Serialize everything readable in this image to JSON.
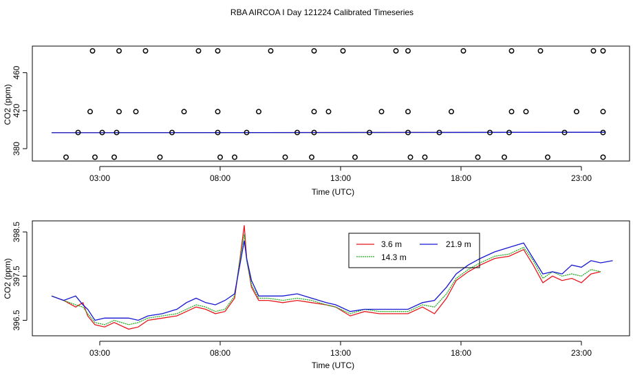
{
  "title": "RBA AIRCOA I  Day 121224  Calibrated Timeseries",
  "colors": {
    "red": "#e8141b",
    "green": "#1faa1f",
    "blue": "#1414d2"
  },
  "chart_data": [
    {
      "type": "line+scatter",
      "xlabel": "Time (UTC)",
      "ylabel": "CO2 (ppm)",
      "xlim": [
        0.2,
        25.0
      ],
      "ylim": [
        367,
        488
      ],
      "xticks": [
        3,
        8,
        13,
        18,
        23
      ],
      "xtick_labels": [
        "03:00",
        "08:00",
        "13:00",
        "18:00",
        "23:00"
      ],
      "yticks": [
        380,
        420,
        460
      ],
      "ytick_labels": [
        "380",
        "420",
        "460"
      ],
      "points": [
        [
          1.6,
          371
        ],
        [
          2.8,
          371
        ],
        [
          3.6,
          371
        ],
        [
          5.5,
          371
        ],
        [
          8.0,
          371
        ],
        [
          8.6,
          371
        ],
        [
          10.7,
          371
        ],
        [
          11.8,
          371
        ],
        [
          13.6,
          371
        ],
        [
          15.9,
          371
        ],
        [
          16.5,
          371
        ],
        [
          18.7,
          371
        ],
        [
          19.8,
          371
        ],
        [
          21.6,
          371
        ],
        [
          23.9,
          371
        ],
        [
          2.1,
          397
        ],
        [
          3.1,
          397
        ],
        [
          3.7,
          397
        ],
        [
          6.0,
          397
        ],
        [
          7.9,
          397
        ],
        [
          9.1,
          397
        ],
        [
          11.2,
          397
        ],
        [
          11.9,
          397
        ],
        [
          14.2,
          397
        ],
        [
          15.8,
          397
        ],
        [
          17.1,
          397
        ],
        [
          19.2,
          397
        ],
        [
          20.0,
          397
        ],
        [
          22.3,
          397
        ],
        [
          23.9,
          397
        ],
        [
          2.6,
          419
        ],
        [
          3.8,
          419
        ],
        [
          4.5,
          419
        ],
        [
          6.5,
          419
        ],
        [
          7.9,
          419
        ],
        [
          9.6,
          419
        ],
        [
          11.9,
          419
        ],
        [
          12.5,
          419
        ],
        [
          14.7,
          419
        ],
        [
          15.8,
          419
        ],
        [
          17.6,
          419
        ],
        [
          20.1,
          419
        ],
        [
          20.7,
          419
        ],
        [
          22.8,
          419
        ],
        [
          23.9,
          419
        ],
        [
          2.7,
          483
        ],
        [
          3.8,
          483
        ],
        [
          4.9,
          483
        ],
        [
          7.1,
          483
        ],
        [
          7.9,
          483
        ],
        [
          10.1,
          483
        ],
        [
          11.9,
          483
        ],
        [
          13.1,
          483
        ],
        [
          15.3,
          483
        ],
        [
          15.8,
          483
        ],
        [
          18.1,
          483
        ],
        [
          20.1,
          483
        ],
        [
          21.3,
          483
        ],
        [
          23.5,
          483
        ],
        [
          23.9,
          483
        ]
      ],
      "series": [
        {
          "name": "3.6 m",
          "color": "#e8141b",
          "x": [
            1.0,
            24.0
          ],
          "y": [
            396.8,
            397.2
          ]
        },
        {
          "name": "14.3 m",
          "color": "#1faa1f",
          "x": [
            1.0,
            24.0
          ],
          "y": [
            396.8,
            397.2
          ]
        },
        {
          "name": "21.9 m",
          "color": "#1414d2",
          "x": [
            1.0,
            24.0
          ],
          "y": [
            396.8,
            397.3
          ]
        }
      ]
    },
    {
      "type": "line",
      "xlabel": "Time (UTC)",
      "ylabel": "CO2 (ppm)",
      "xlim": [
        0.2,
        25.0
      ],
      "ylim": [
        396.15,
        398.75
      ],
      "xticks": [
        3,
        8,
        13,
        18,
        23
      ],
      "xtick_labels": [
        "03:00",
        "08:00",
        "13:00",
        "18:00",
        "23:00"
      ],
      "yticks": [
        396.5,
        397.5,
        398.5
      ],
      "ytick_labels": [
        "396.5",
        "397.5",
        "398.5"
      ],
      "legend": {
        "position": "top-center",
        "entries": [
          "3.6 m",
          "14.3 m",
          "21.9 m"
        ]
      },
      "series": [
        {
          "name": "3.6 m",
          "color": "#e8141b",
          "x": [
            1.0,
            1.5,
            2.0,
            2.3,
            2.5,
            2.8,
            3.2,
            3.6,
            4.2,
            4.6,
            5.0,
            5.6,
            6.2,
            6.6,
            7.0,
            7.4,
            7.8,
            8.2,
            8.6,
            8.8,
            9.0,
            9.1,
            9.3,
            9.6,
            10.0,
            10.6,
            11.2,
            11.8,
            12.4,
            12.8,
            13.4,
            14.0,
            14.6,
            15.2,
            15.8,
            16.4,
            16.9,
            17.4,
            17.8,
            18.3,
            18.8,
            19.4,
            20.0,
            20.6,
            21.0,
            21.4,
            21.8,
            22.2,
            22.6,
            23.0,
            23.4,
            23.8
          ],
          "y": [
            397.05,
            396.95,
            396.8,
            396.9,
            396.6,
            396.4,
            396.35,
            396.45,
            396.3,
            396.35,
            396.5,
            396.55,
            396.6,
            396.7,
            396.8,
            396.75,
            396.65,
            396.7,
            397.0,
            397.8,
            398.65,
            397.9,
            397.25,
            396.95,
            396.95,
            396.9,
            396.95,
            396.9,
            396.85,
            396.8,
            396.6,
            396.7,
            396.65,
            396.65,
            396.65,
            396.8,
            396.65,
            397.0,
            397.4,
            397.6,
            397.75,
            397.9,
            397.95,
            398.1,
            397.75,
            397.35,
            397.5,
            397.4,
            397.45,
            397.35,
            397.55,
            397.6
          ]
        },
        {
          "name": "14.3 m",
          "color": "#1faa1f",
          "x": [
            1.0,
            1.5,
            2.0,
            2.3,
            2.5,
            2.8,
            3.2,
            3.6,
            4.2,
            4.6,
            5.0,
            5.6,
            6.2,
            6.6,
            7.0,
            7.4,
            7.8,
            8.2,
            8.6,
            8.8,
            9.0,
            9.1,
            9.3,
            9.6,
            10.0,
            10.6,
            11.2,
            11.8,
            12.4,
            12.8,
            13.4,
            14.0,
            14.6,
            15.2,
            15.8,
            16.4,
            16.9,
            17.4,
            17.8,
            18.3,
            18.8,
            19.4,
            20.0,
            20.6,
            21.0,
            21.4,
            21.8,
            22.2,
            22.6,
            23.0,
            23.4,
            23.8
          ],
          "y": [
            397.05,
            396.95,
            396.85,
            396.8,
            396.65,
            396.45,
            396.4,
            396.5,
            396.4,
            396.45,
            396.55,
            396.6,
            396.65,
            396.75,
            396.85,
            396.8,
            396.7,
            396.75,
            397.05,
            397.8,
            398.45,
            397.85,
            397.3,
            397.0,
            397.0,
            396.95,
            397.0,
            396.95,
            396.85,
            396.8,
            396.65,
            396.75,
            396.7,
            396.7,
            396.7,
            396.85,
            396.8,
            397.1,
            397.45,
            397.65,
            397.8,
            397.95,
            398.0,
            398.15,
            397.85,
            397.45,
            397.6,
            397.5,
            397.55,
            397.5,
            397.65,
            397.6
          ]
        },
        {
          "name": "21.9 m",
          "color": "#1414d2",
          "x": [
            1.0,
            1.5,
            2.0,
            2.3,
            2.5,
            2.8,
            3.2,
            3.6,
            4.2,
            4.6,
            5.0,
            5.6,
            6.2,
            6.6,
            7.0,
            7.4,
            7.8,
            8.2,
            8.6,
            8.8,
            9.0,
            9.1,
            9.3,
            9.6,
            10.0,
            10.6,
            11.2,
            11.8,
            12.4,
            12.8,
            13.4,
            14.0,
            14.6,
            15.2,
            15.8,
            16.4,
            16.9,
            17.4,
            17.8,
            18.3,
            18.8,
            19.4,
            20.0,
            20.6,
            21.0,
            21.4,
            21.8,
            22.2,
            22.6,
            23.0,
            23.4,
            23.8,
            24.3
          ],
          "y": [
            397.05,
            396.95,
            397.05,
            396.85,
            396.75,
            396.5,
            396.55,
            396.55,
            396.55,
            396.5,
            396.6,
            396.65,
            396.75,
            396.9,
            397.0,
            396.9,
            396.85,
            396.95,
            397.1,
            397.7,
            398.3,
            397.9,
            397.4,
            397.05,
            397.05,
            397.05,
            397.1,
            397.0,
            396.9,
            396.85,
            396.7,
            396.75,
            396.75,
            396.75,
            396.75,
            396.9,
            396.95,
            397.25,
            397.55,
            397.75,
            397.9,
            398.05,
            398.15,
            398.25,
            397.9,
            397.55,
            397.6,
            397.55,
            397.75,
            397.7,
            397.85,
            397.8,
            397.85
          ]
        }
      ]
    }
  ]
}
